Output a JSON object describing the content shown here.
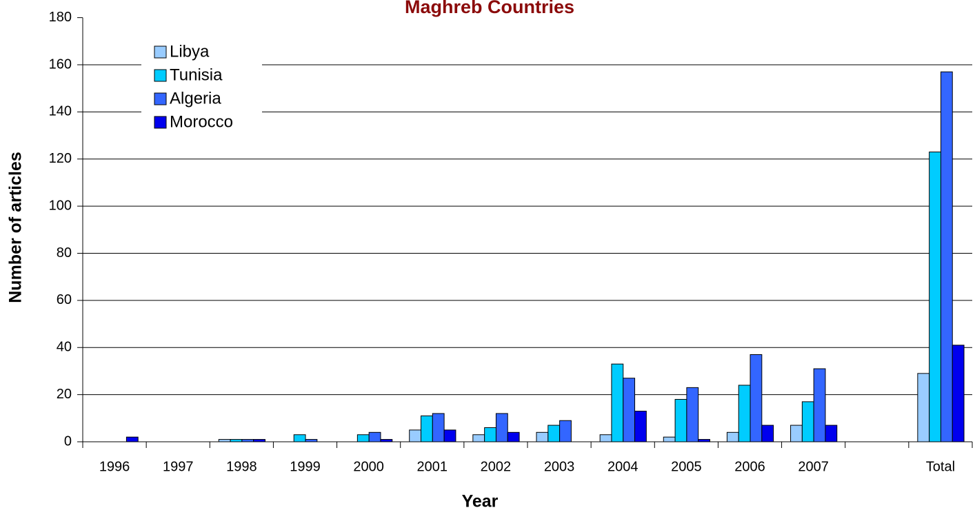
{
  "chart_data": {
    "type": "bar",
    "title": "Maghreb Countries",
    "x_label": "Year",
    "y_label": "Number of articles",
    "categories": [
      "1996",
      "1997",
      "1998",
      "1999",
      "2000",
      "2001",
      "2002",
      "2003",
      "2004",
      "2005",
      "2006",
      "2007",
      null,
      "Total"
    ],
    "series": [
      {
        "name": "Libya",
        "color": "#99ccff",
        "values": [
          0,
          0,
          1,
          0,
          0,
          5,
          3,
          4,
          3,
          2,
          4,
          7,
          null,
          29
        ]
      },
      {
        "name": "Tunisia",
        "color": "#00ccff",
        "values": [
          0,
          0,
          1,
          3,
          3,
          11,
          6,
          7,
          33,
          18,
          24,
          17,
          null,
          123
        ]
      },
      {
        "name": "Algeria",
        "color": "#3366ff",
        "values": [
          0,
          0,
          1,
          1,
          4,
          12,
          12,
          9,
          27,
          23,
          37,
          31,
          null,
          157
        ]
      },
      {
        "name": "Morocco",
        "color": "#0000ee",
        "values": [
          2,
          0,
          1,
          0,
          1,
          5,
          4,
          0,
          13,
          1,
          7,
          7,
          null,
          41
        ]
      }
    ],
    "ylim": [
      0,
      180
    ],
    "yticks": [
      0,
      20,
      40,
      60,
      80,
      100,
      120,
      140,
      160,
      180
    ],
    "grid": true,
    "legend": "upper left"
  }
}
